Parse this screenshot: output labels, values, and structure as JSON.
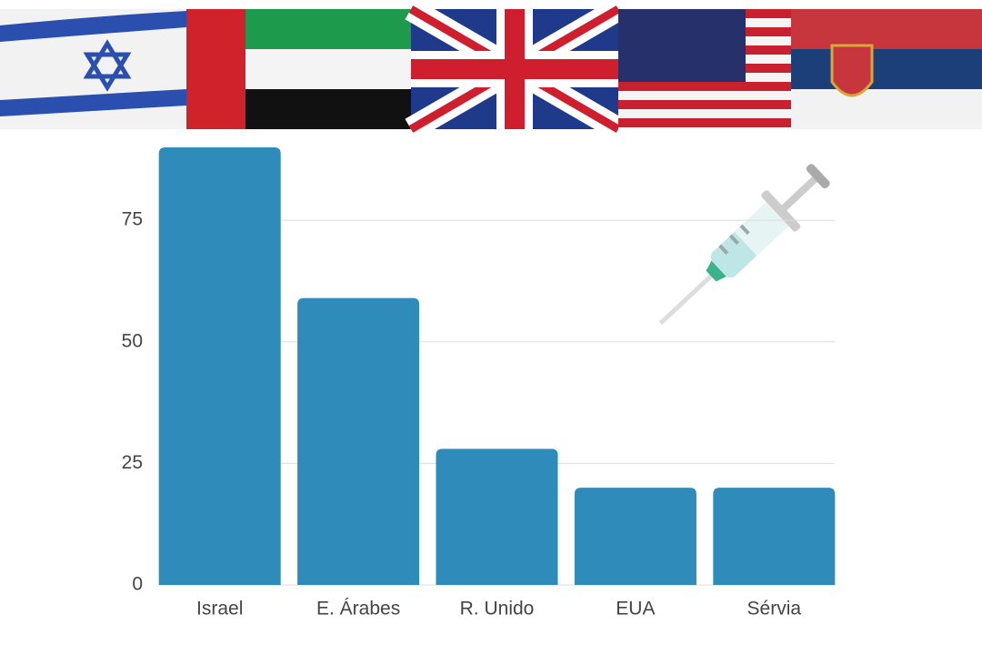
{
  "chart_data": {
    "type": "bar",
    "categories": [
      "Israel",
      "E. Árabes",
      "R. Unido",
      "EUA",
      "Sérvia"
    ],
    "values": [
      90,
      59,
      28,
      20,
      20
    ],
    "color": "#2e8bba",
    "ylim": [
      0,
      90
    ],
    "yticks": [
      0,
      25,
      50,
      75
    ],
    "grid": true
  }
}
